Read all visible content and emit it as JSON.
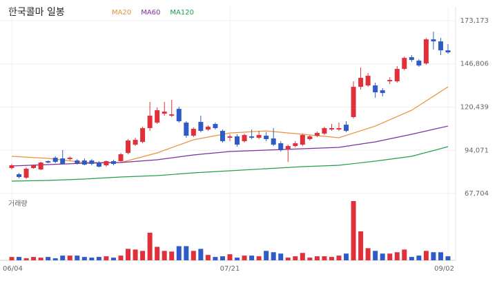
{
  "chart_data": {
    "type": "candlestick",
    "title": "한국콜마 일봉",
    "volume_label": "거래량",
    "up_color": "#e0313a",
    "down_color": "#2f5bc8",
    "grid": true,
    "categories": [
      "06/04",
      null,
      null,
      null,
      null,
      null,
      null,
      null,
      null,
      null,
      null,
      null,
      null,
      null,
      null,
      null,
      null,
      null,
      null,
      null,
      null,
      null,
      null,
      null,
      null,
      null,
      null,
      null,
      null,
      null,
      "07/21",
      null,
      null,
      null,
      null,
      null,
      null,
      null,
      null,
      null,
      null,
      null,
      null,
      null,
      null,
      null,
      null,
      null,
      null,
      null,
      null,
      null,
      null,
      null,
      null,
      null,
      null,
      null,
      null,
      null,
      "09/02"
    ],
    "open": [
      83240,
      79460,
      77360,
      83240,
      82400,
      87440,
      89540,
      89120,
      88700,
      87860,
      87860,
      87860,
      86600,
      84920,
      87440,
      87440,
      92480,
      97520,
      99200,
      107600,
      110960,
      116420,
      115160,
      119360,
      110960,
      102980,
      111380,
      106760,
      110120,
      105920,
      101720,
      102560,
      99620,
      102560,
      101720,
      102980,
      101300,
      98360,
      95000,
      96680,
      97520,
      100880,
      102980,
      104240,
      106760,
      106760,
      109700,
      114320,
      132800,
      133640,
      133640,
      130700,
      136160,
      136160,
      143720,
      150860,
      148760,
      147080,
      161780,
      160520,
      155060
    ],
    "high": [
      85760,
      80300,
      83660,
      85340,
      87020,
      87860,
      90380,
      94160,
      90380,
      88700,
      89120,
      88700,
      87440,
      87860,
      88280,
      92480,
      100880,
      101720,
      108440,
      123560,
      120200,
      123560,
      124820,
      120620,
      111800,
      108020,
      115160,
      109280,
      110960,
      106760,
      103820,
      103820,
      104240,
      106760,
      105920,
      105080,
      107600,
      99620,
      97520,
      99620,
      104240,
      103400,
      105500,
      108440,
      110120,
      110960,
      111800,
      136160,
      144560,
      141200,
      135320,
      131960,
      138680,
      145400,
      151280,
      152120,
      149600,
      162620,
      166400,
      162620,
      158840
    ],
    "low": [
      82400,
      76940,
      76520,
      82820,
      81980,
      86180,
      86180,
      85340,
      87860,
      85340,
      84920,
      84920,
      83660,
      84080,
      84920,
      86600,
      91640,
      96680,
      98360,
      105920,
      110120,
      115160,
      114320,
      110960,
      101720,
      102140,
      105080,
      105920,
      106760,
      98780,
      99620,
      96260,
      98780,
      100880,
      100880,
      99620,
      96680,
      93320,
      87020,
      95840,
      96680,
      100040,
      102140,
      103400,
      105920,
      105920,
      105080,
      113480,
      131120,
      132800,
      126080,
      126920,
      134480,
      135320,
      142880,
      147920,
      144980,
      146240,
      155480,
      152120,
      152960
    ],
    "close": [
      84920,
      77780,
      82820,
      84920,
      86600,
      86600,
      87020,
      85760,
      89540,
      86180,
      85340,
      85760,
      84080,
      87440,
      85760,
      91640,
      100040,
      100460,
      107600,
      115160,
      118520,
      117680,
      116000,
      111800,
      102980,
      107180,
      105920,
      108440,
      107600,
      99620,
      102560,
      97520,
      103400,
      101720,
      103400,
      100880,
      97520,
      94160,
      96680,
      98360,
      103400,
      102560,
      104660,
      107600,
      107600,
      107600,
      105920,
      132800,
      138260,
      139520,
      129440,
      129020,
      137000,
      143720,
      150440,
      149180,
      145820,
      161780,
      160520,
      155060,
      153800
    ],
    "volume": [
      50000,
      50000,
      30000,
      50000,
      40000,
      50000,
      30000,
      70000,
      70000,
      70000,
      50000,
      40000,
      50000,
      60000,
      40000,
      70000,
      170000,
      160000,
      140000,
      410000,
      200000,
      140000,
      130000,
      210000,
      210000,
      140000,
      170000,
      80000,
      50000,
      60000,
      90000,
      40000,
      70000,
      70000,
      60000,
      140000,
      120000,
      100000,
      40000,
      60000,
      110000,
      40000,
      60000,
      60000,
      50000,
      70000,
      100000,
      880000,
      430000,
      180000,
      140000,
      100000,
      100000,
      120000,
      160000,
      50000,
      70000,
      140000,
      120000,
      120000,
      60000
    ],
    "volume_ylim": [
      0,
      900000
    ],
    "ylim": [
      67704,
      173173
    ],
    "yticks": [
      {
        "value": 67704,
        "label": "67,704"
      },
      {
        "value": 94071,
        "label": "94,071"
      },
      {
        "value": 120439,
        "label": "120,439"
      },
      {
        "value": 146806,
        "label": "146,806"
      },
      {
        "value": 173173,
        "label": "173,173"
      }
    ],
    "series": [
      {
        "name": "MA20",
        "color": "#e8913a",
        "x": [
          0,
          5,
          10,
          15,
          20,
          25,
          30,
          35,
          40,
          45,
          50,
          55,
          60
        ],
        "values": [
          90380,
          89120,
          86600,
          86600,
          92480,
          100460,
          104660,
          105920,
          103820,
          101720,
          108860,
          118520,
          132800
        ]
      },
      {
        "name": "MA60",
        "color": "#7b2d9e",
        "x": [
          0,
          5,
          10,
          15,
          20,
          25,
          30,
          35,
          40,
          45,
          50,
          55,
          60
        ],
        "values": [
          84500,
          85340,
          86180,
          86600,
          88280,
          91220,
          93320,
          94160,
          95000,
          95840,
          99200,
          103820,
          108860
        ]
      },
      {
        "name": "MA120",
        "color": "#1f9e4e",
        "x": [
          0,
          5,
          10,
          15,
          20,
          25,
          30,
          35,
          40,
          45,
          50,
          55,
          60
        ],
        "values": [
          75260,
          75680,
          76520,
          77780,
          78620,
          80300,
          81560,
          82820,
          84080,
          84920,
          87440,
          90380,
          96260
        ]
      }
    ]
  }
}
